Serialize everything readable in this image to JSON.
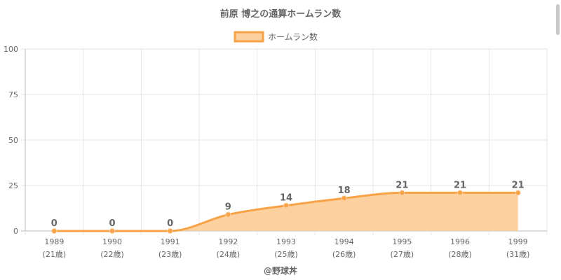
{
  "chart_data": {
    "type": "area",
    "title": "前原 博之の通算ホームラン数",
    "legend": {
      "label": "ホームラン数",
      "position": "top"
    },
    "categories": [
      "1989",
      "1990",
      "1991",
      "1992",
      "1993",
      "1994",
      "1995",
      "1996",
      "1999"
    ],
    "age_labels": [
      "(21歳)",
      "(22歳)",
      "(23歳)",
      "(24歳)",
      "(25歳)",
      "(26歳)",
      "(27歳)",
      "(28歳)",
      "(31歳)"
    ],
    "series": [
      {
        "name": "ホームラン数",
        "values": [
          0,
          0,
          0,
          9,
          14,
          18,
          21,
          21,
          21
        ]
      }
    ],
    "ylim": [
      0,
      100
    ],
    "yticks": [
      0,
      25,
      50,
      75,
      100
    ],
    "grid": true,
    "colors": {
      "line": "#f7a246",
      "fill": "#fdd09f",
      "point": "#f7a246"
    }
  },
  "credit": "@野球丼"
}
